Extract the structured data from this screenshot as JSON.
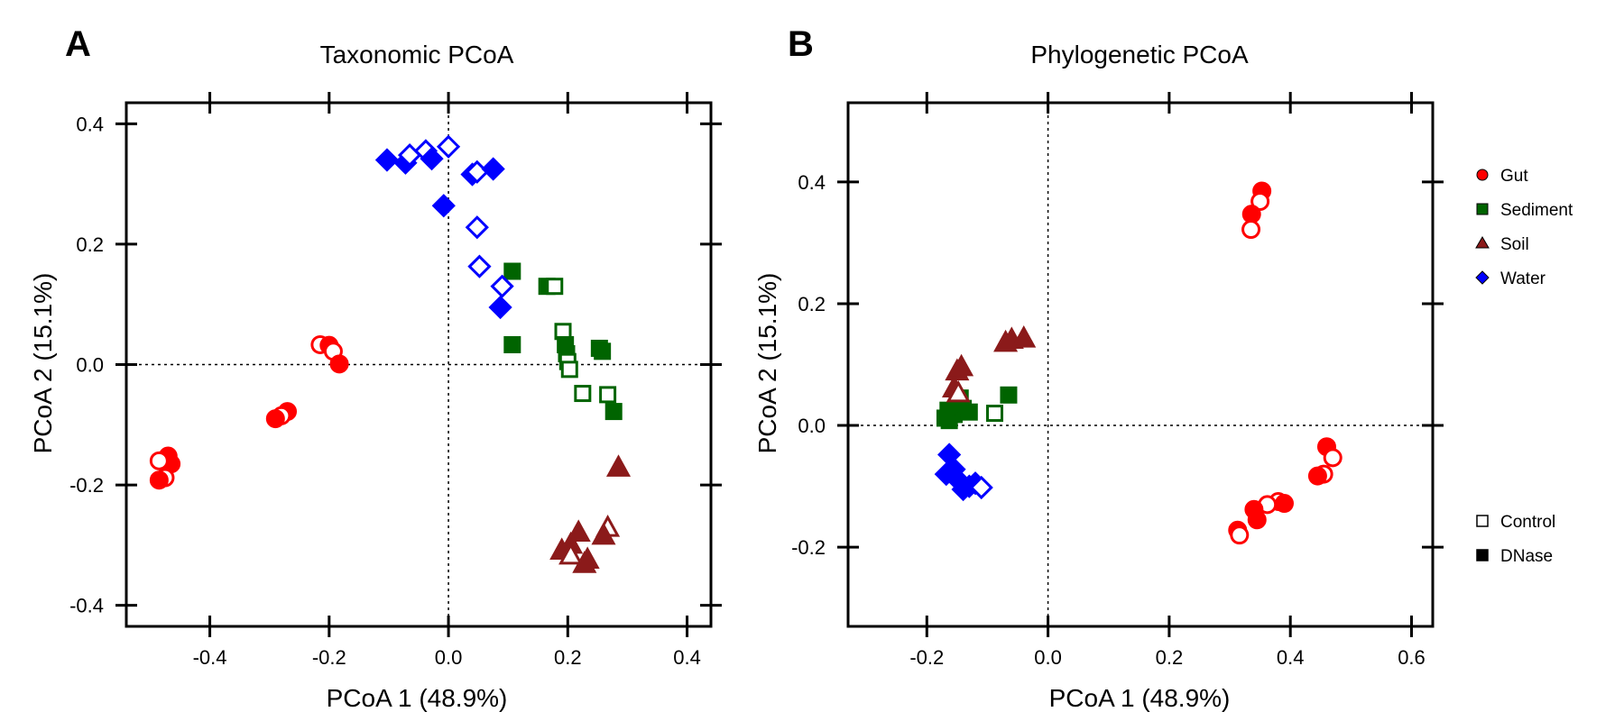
{
  "chart_data": [
    {
      "panel": "A",
      "type": "scatter",
      "title": "Taxonomic PCoA",
      "xlabel": "PCoA 1 (48.9%)",
      "ylabel": "PCoA 2 (15.1%)",
      "xlim": [
        -0.54,
        0.44
      ],
      "ylim": [
        -0.435,
        0.435
      ],
      "xticks": [
        "-0.4",
        "-0.2",
        "0.0",
        "0.2",
        "0.4"
      ],
      "yticks": [
        "-0.4",
        "-0.2",
        "0.0",
        "0.2",
        "0.4"
      ],
      "xtick_values": [
        -0.4,
        -0.2,
        0.0,
        0.2,
        0.4
      ],
      "ytick_values": [
        -0.4,
        -0.2,
        0.0,
        0.2,
        0.4
      ],
      "reference_lines": {
        "x": 0,
        "y": 0
      },
      "series": [
        {
          "name": "Gut",
          "color": "#ff0000",
          "marker": "circle",
          "points": [
            {
              "x": -0.215,
              "y": 0.033,
              "filled": false
            },
            {
              "x": -0.2,
              "y": 0.032,
              "filled": true
            },
            {
              "x": -0.193,
              "y": 0.022,
              "filled": false
            },
            {
              "x": -0.183,
              "y": 0.001,
              "filled": true
            },
            {
              "x": -0.27,
              "y": -0.078,
              "filled": true
            },
            {
              "x": -0.28,
              "y": -0.085,
              "filled": false
            },
            {
              "x": -0.29,
              "y": -0.09,
              "filled": true
            },
            {
              "x": -0.47,
              "y": -0.152,
              "filled": true
            },
            {
              "x": -0.465,
              "y": -0.165,
              "filled": true
            },
            {
              "x": -0.485,
              "y": -0.16,
              "filled": false
            },
            {
              "x": -0.475,
              "y": -0.188,
              "filled": false
            },
            {
              "x": -0.485,
              "y": -0.192,
              "filled": true
            }
          ]
        },
        {
          "name": "Sediment",
          "color": "#006400",
          "marker": "square",
          "points": [
            {
              "x": 0.107,
              "y": 0.155,
              "filled": true
            },
            {
              "x": 0.107,
              "y": 0.033,
              "filled": true
            },
            {
              "x": 0.165,
              "y": 0.13,
              "filled": true
            },
            {
              "x": 0.178,
              "y": 0.13,
              "filled": false
            },
            {
              "x": 0.192,
              "y": 0.055,
              "filled": false
            },
            {
              "x": 0.196,
              "y": 0.033,
              "filled": true
            },
            {
              "x": 0.198,
              "y": 0.018,
              "filled": true
            },
            {
              "x": 0.2,
              "y": 0.005,
              "filled": false
            },
            {
              "x": 0.203,
              "y": -0.008,
              "filled": false
            },
            {
              "x": 0.253,
              "y": 0.027,
              "filled": true
            },
            {
              "x": 0.258,
              "y": 0.022,
              "filled": true
            },
            {
              "x": 0.225,
              "y": -0.048,
              "filled": false
            },
            {
              "x": 0.267,
              "y": -0.05,
              "filled": false
            },
            {
              "x": 0.277,
              "y": -0.078,
              "filled": true
            }
          ]
        },
        {
          "name": "Soil",
          "color": "#8b1a1a",
          "marker": "triangle",
          "points": [
            {
              "x": 0.285,
              "y": -0.172,
              "filled": true
            },
            {
              "x": 0.267,
              "y": -0.272,
              "filled": false
            },
            {
              "x": 0.26,
              "y": -0.285,
              "filled": true
            },
            {
              "x": 0.218,
              "y": -0.28,
              "filled": true
            },
            {
              "x": 0.205,
              "y": -0.3,
              "filled": true
            },
            {
              "x": 0.19,
              "y": -0.31,
              "filled": true
            },
            {
              "x": 0.205,
              "y": -0.318,
              "filled": false
            },
            {
              "x": 0.228,
              "y": -0.332,
              "filled": true
            },
            {
              "x": 0.233,
              "y": -0.325,
              "filled": true
            }
          ]
        },
        {
          "name": "Water",
          "color": "#0000ff",
          "marker": "diamond",
          "points": [
            {
              "x": -0.103,
              "y": 0.34,
              "filled": true
            },
            {
              "x": -0.072,
              "y": 0.335,
              "filled": true
            },
            {
              "x": -0.065,
              "y": 0.348,
              "filled": false
            },
            {
              "x": -0.038,
              "y": 0.355,
              "filled": false
            },
            {
              "x": -0.028,
              "y": 0.342,
              "filled": true
            },
            {
              "x": 0.0,
              "y": 0.362,
              "filled": false
            },
            {
              "x": 0.04,
              "y": 0.316,
              "filled": true
            },
            {
              "x": 0.048,
              "y": 0.32,
              "filled": false
            },
            {
              "x": 0.075,
              "y": 0.325,
              "filled": true
            },
            {
              "x": -0.008,
              "y": 0.264,
              "filled": true
            },
            {
              "x": 0.048,
              "y": 0.228,
              "filled": false
            },
            {
              "x": 0.052,
              "y": 0.163,
              "filled": false
            },
            {
              "x": 0.09,
              "y": 0.13,
              "filled": false
            },
            {
              "x": 0.087,
              "y": 0.095,
              "filled": true
            }
          ]
        }
      ]
    },
    {
      "panel": "B",
      "type": "scatter",
      "title": "Phylogenetic PCoA",
      "xlabel": "PCoA 1 (48.9%)",
      "ylabel": "PCoA 2 (15.1%)",
      "xlim": [
        -0.33,
        0.635
      ],
      "ylim": [
        -0.33,
        0.53
      ],
      "xticks": [
        "-0.2",
        "0.0",
        "0.2",
        "0.4",
        "0.6"
      ],
      "yticks": [
        "-0.2",
        "0.0",
        "0.2",
        "0.4"
      ],
      "xtick_values": [
        -0.2,
        0.0,
        0.2,
        0.4,
        0.6
      ],
      "ytick_values": [
        -0.2,
        0.0,
        0.2,
        0.4
      ],
      "reference_lines": {
        "x": 0,
        "y": 0
      },
      "series": [
        {
          "name": "Gut",
          "color": "#ff0000",
          "marker": "circle",
          "points": [
            {
              "x": 0.353,
              "y": 0.385,
              "filled": true
            },
            {
              "x": 0.35,
              "y": 0.368,
              "filled": false
            },
            {
              "x": 0.336,
              "y": 0.347,
              "filled": true
            },
            {
              "x": 0.335,
              "y": 0.322,
              "filled": false
            },
            {
              "x": 0.46,
              "y": -0.035,
              "filled": true
            },
            {
              "x": 0.47,
              "y": -0.053,
              "filled": false
            },
            {
              "x": 0.455,
              "y": -0.08,
              "filled": false
            },
            {
              "x": 0.445,
              "y": -0.083,
              "filled": true
            },
            {
              "x": 0.38,
              "y": -0.125,
              "filled": false
            },
            {
              "x": 0.39,
              "y": -0.128,
              "filled": true
            },
            {
              "x": 0.362,
              "y": -0.13,
              "filled": false
            },
            {
              "x": 0.34,
              "y": -0.138,
              "filled": true
            },
            {
              "x": 0.345,
              "y": -0.155,
              "filled": true
            },
            {
              "x": 0.313,
              "y": -0.172,
              "filled": true
            },
            {
              "x": 0.316,
              "y": -0.18,
              "filled": false
            }
          ]
        },
        {
          "name": "Sediment",
          "color": "#006400",
          "marker": "square",
          "points": [
            {
              "x": -0.17,
              "y": 0.012,
              "filled": true
            },
            {
              "x": -0.165,
              "y": 0.025,
              "filled": true
            },
            {
              "x": -0.155,
              "y": 0.018,
              "filled": true
            },
            {
              "x": -0.145,
              "y": 0.045,
              "filled": true
            },
            {
              "x": -0.14,
              "y": 0.028,
              "filled": true
            },
            {
              "x": -0.13,
              "y": 0.022,
              "filled": true
            },
            {
              "x": -0.163,
              "y": 0.008,
              "filled": true
            },
            {
              "x": -0.088,
              "y": 0.02,
              "filled": false
            },
            {
              "x": -0.065,
              "y": 0.05,
              "filled": true
            }
          ]
        },
        {
          "name": "Soil",
          "color": "#8b1a1a",
          "marker": "triangle",
          "points": [
            {
              "x": -0.15,
              "y": 0.088,
              "filled": true
            },
            {
              "x": -0.143,
              "y": 0.095,
              "filled": true
            },
            {
              "x": -0.155,
              "y": 0.06,
              "filled": true
            },
            {
              "x": -0.148,
              "y": 0.052,
              "filled": false
            },
            {
              "x": -0.07,
              "y": 0.135,
              "filled": true
            },
            {
              "x": -0.06,
              "y": 0.14,
              "filled": true
            },
            {
              "x": -0.04,
              "y": 0.142,
              "filled": true
            }
          ]
        },
        {
          "name": "Water",
          "color": "#0000ff",
          "marker": "diamond",
          "points": [
            {
              "x": -0.163,
              "y": -0.048,
              "filled": true
            },
            {
              "x": -0.168,
              "y": -0.08,
              "filled": true
            },
            {
              "x": -0.155,
              "y": -0.072,
              "filled": true
            },
            {
              "x": -0.148,
              "y": -0.09,
              "filled": true
            },
            {
              "x": -0.14,
              "y": -0.105,
              "filled": true
            },
            {
              "x": -0.13,
              "y": -0.1,
              "filled": true
            },
            {
              "x": -0.12,
              "y": -0.095,
              "filled": true
            },
            {
              "x": -0.11,
              "y": -0.102,
              "filled": false
            }
          ]
        }
      ]
    }
  ],
  "legend": {
    "groups": [
      {
        "label": "Gut",
        "color": "#ff0000",
        "marker": "circle"
      },
      {
        "label": "Sediment",
        "color": "#006400",
        "marker": "square"
      },
      {
        "label": "Soil",
        "color": "#8b1a1a",
        "marker": "triangle"
      },
      {
        "label": "Water",
        "color": "#0000ff",
        "marker": "diamond"
      }
    ],
    "treatments": [
      {
        "label": "Control",
        "filled": false
      },
      {
        "label": "DNase",
        "filled": true
      }
    ]
  }
}
